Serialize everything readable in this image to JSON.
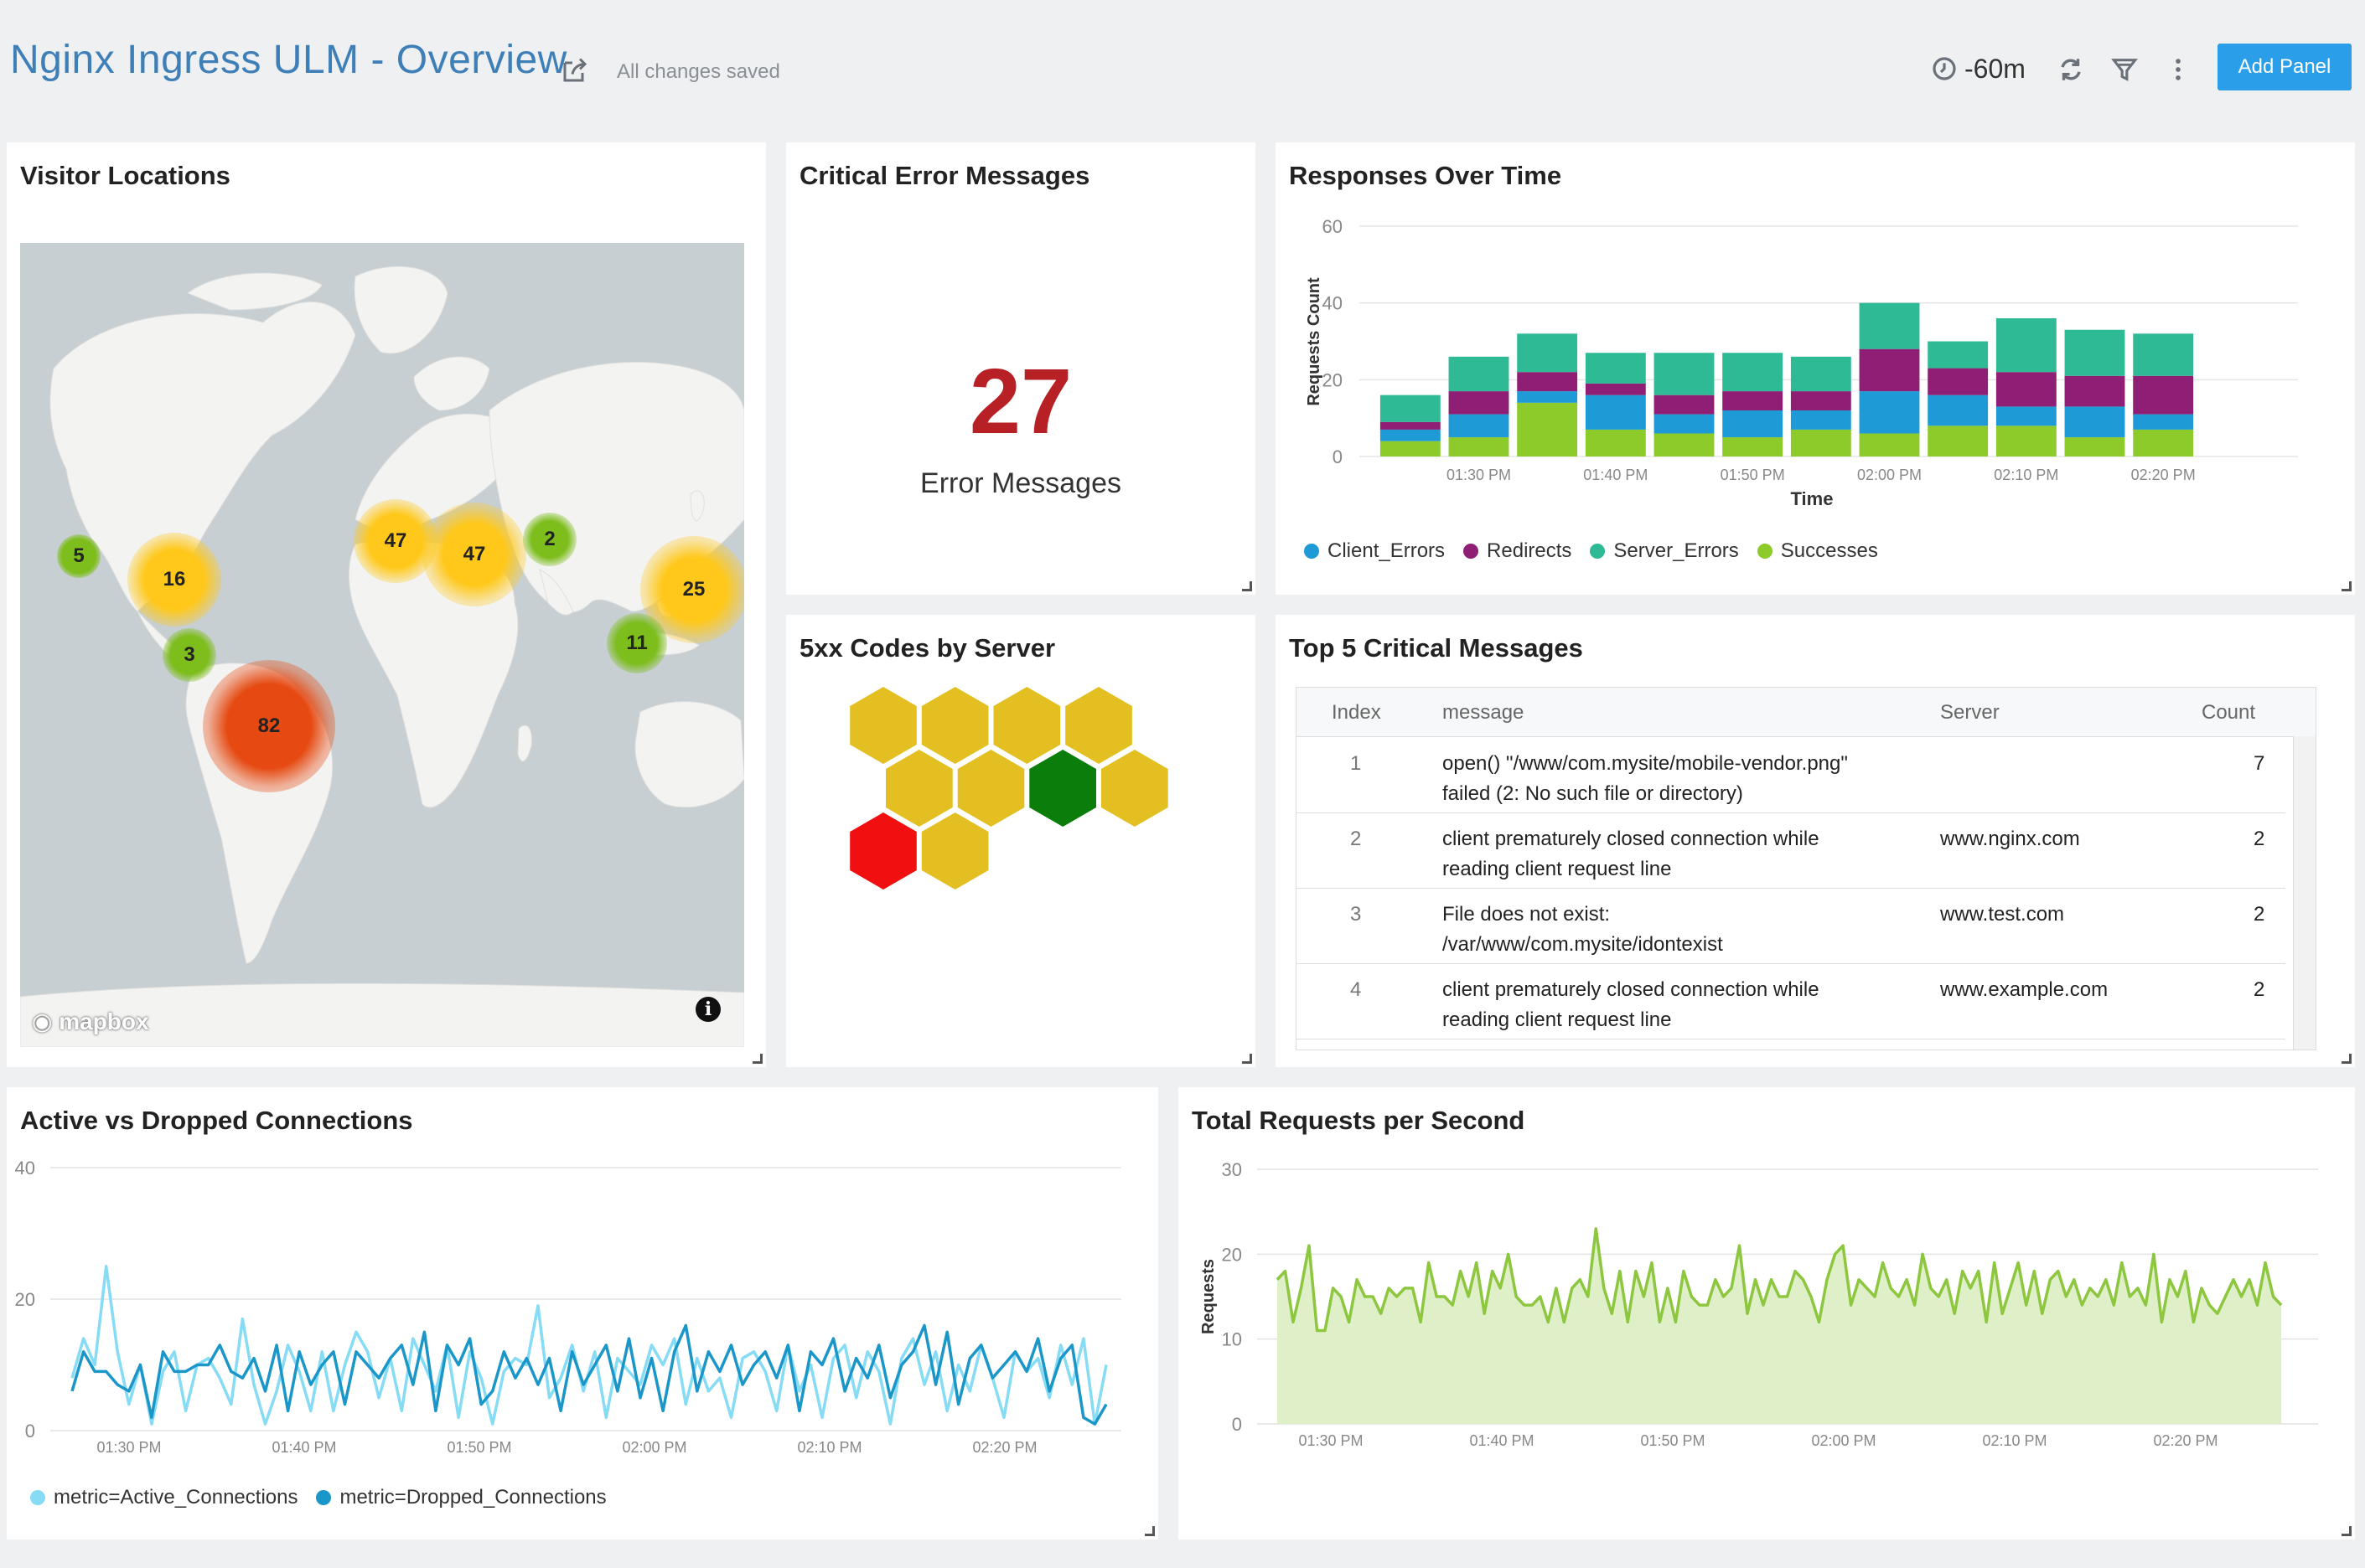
{
  "header": {
    "title": "Nginx Ingress ULM - Overview",
    "saved_status": "All changes saved",
    "time_range": "-60m",
    "add_panel_label": "Add Panel"
  },
  "panels": {
    "visitor_locations": {
      "title": "Visitor Locations",
      "clusters": [
        {
          "count": "5",
          "level": "green"
        },
        {
          "count": "16",
          "level": "yellow"
        },
        {
          "count": "3",
          "level": "green"
        },
        {
          "count": "82",
          "level": "red"
        },
        {
          "count": "47",
          "level": "yellow"
        },
        {
          "count": "47",
          "level": "yellow"
        },
        {
          "count": "2",
          "level": "green"
        },
        {
          "count": "25",
          "level": "yellow"
        },
        {
          "count": "11",
          "level": "green"
        }
      ],
      "attribution": "mapbox"
    },
    "critical_errors": {
      "title": "Critical Error Messages",
      "value": "27",
      "label": "Error Messages"
    },
    "responses_over_time": {
      "title": "Responses Over Time"
    },
    "codes_by_server": {
      "title": "5xx Codes by Server",
      "cells": [
        "yellow",
        "yellow",
        "yellow",
        "yellow",
        "yellow",
        "yellow",
        "green",
        "yellow",
        "red",
        "yellow"
      ]
    },
    "top_messages": {
      "title": "Top 5 Critical Messages",
      "columns": [
        "Index",
        "message",
        "Server",
        "Count"
      ],
      "rows": [
        {
          "index": "1",
          "message_line1": "open() \"/www/com.mysite/mobile-vendor.png\"",
          "message_line2": "failed (2: No such file or directory)",
          "server": "",
          "count": "7"
        },
        {
          "index": "2",
          "message_line1": "client prematurely closed connection while",
          "message_line2": "reading client request line",
          "server": "www.nginx.com",
          "count": "2"
        },
        {
          "index": "3",
          "message_line1": "File does not exist:",
          "message_line2": "/var/www/com.mysite/idontexist",
          "server": "www.test.com",
          "count": "2"
        },
        {
          "index": "4",
          "message_line1": "client prematurely closed connection while",
          "message_line2": "reading client request line",
          "server": "www.example.com",
          "count": "2"
        }
      ]
    },
    "active_dropped": {
      "title": "Active vs Dropped Connections"
    },
    "total_requests": {
      "title": "Total Requests per Second"
    }
  },
  "colors": {
    "client_errors": "#1e9bd7",
    "redirects": "#8e1f74",
    "server_errors": "#2dba94",
    "successes": "#8ccb2a",
    "active": "#86dbf5",
    "dropped": "#1a96c8",
    "requests_line": "#8dc63f",
    "requests_fill": "#dff0c8",
    "hex_yellow": "#e3bf21",
    "hex_green": "#0b7d0b",
    "hex_red": "#f01010"
  },
  "chart_data": [
    {
      "type": "bar",
      "stacked": true,
      "title": "Responses Over Time",
      "xlabel": "Time",
      "ylabel": "Requests Count",
      "ylim": [
        0,
        60
      ],
      "yticks": [
        0,
        20,
        40,
        60
      ],
      "xticks": [
        "01:30 PM",
        "01:40 PM",
        "01:50 PM",
        "02:00 PM",
        "02:10 PM",
        "02:20 PM"
      ],
      "categories": [
        "01:27 PM",
        "01:32 PM",
        "01:37 PM",
        "01:42 PM",
        "01:47 PM",
        "01:52 PM",
        "01:57 PM",
        "02:02 PM",
        "02:07 PM",
        "02:12 PM",
        "02:17 PM",
        "02:22 PM"
      ],
      "series": [
        {
          "name": "Successes",
          "values": [
            4,
            5,
            14,
            7,
            6,
            5,
            7,
            6,
            8,
            8,
            5,
            7
          ]
        },
        {
          "name": "Client_Errors",
          "values": [
            3,
            6,
            3,
            9,
            5,
            7,
            5,
            11,
            8,
            5,
            8,
            4
          ]
        },
        {
          "name": "Redirects",
          "values": [
            2,
            6,
            5,
            3,
            5,
            5,
            5,
            11,
            7,
            9,
            8,
            10
          ]
        },
        {
          "name": "Server_Errors",
          "values": [
            7,
            9,
            10,
            8,
            11,
            10,
            9,
            12,
            7,
            14,
            12,
            11
          ]
        }
      ],
      "legend_position": "bottom"
    },
    {
      "type": "line",
      "title": "Active vs Dropped Connections",
      "ylim": [
        0,
        40
      ],
      "yticks": [
        0,
        20,
        40
      ],
      "xticks": [
        "01:30 PM",
        "01:40 PM",
        "01:50 PM",
        "02:00 PM",
        "02:10 PM",
        "02:20 PM"
      ],
      "series": [
        {
          "name": "metric=Active_Connections",
          "values": [
            8,
            14,
            10,
            25,
            12,
            4,
            10,
            1,
            9,
            12,
            3,
            10,
            11,
            8,
            4,
            17,
            7,
            1,
            6,
            13,
            9,
            3,
            12,
            3,
            10,
            15,
            12,
            5,
            11,
            3,
            14,
            10,
            6,
            13,
            2,
            12,
            8,
            1,
            9,
            11,
            10,
            19,
            5,
            8,
            13,
            6,
            12,
            2,
            11,
            9,
            7,
            13,
            10,
            14,
            4,
            11,
            6,
            8,
            2,
            11,
            12,
            9,
            3,
            13,
            6,
            10,
            2,
            11,
            13,
            5,
            12,
            9,
            1,
            11,
            14,
            7,
            12,
            3,
            10,
            6,
            13,
            8,
            2,
            12,
            9,
            11,
            5,
            13,
            7,
            14,
            1,
            10
          ]
        },
        {
          "name": "metric=Dropped_Connections",
          "values": [
            6,
            12,
            9,
            9,
            7,
            6,
            10,
            2,
            12,
            9,
            9,
            10,
            10,
            13,
            9,
            8,
            11,
            6,
            13,
            3,
            12,
            7,
            10,
            12,
            4,
            12,
            10,
            8,
            11,
            13,
            7,
            15,
            3,
            13,
            10,
            14,
            4,
            6,
            12,
            8,
            11,
            7,
            11,
            3,
            12,
            7,
            10,
            13,
            6,
            14,
            5,
            11,
            3,
            12,
            16,
            6,
            12,
            9,
            13,
            7,
            10,
            12,
            8,
            13,
            3,
            12,
            10,
            14,
            6,
            11,
            8,
            13,
            5,
            10,
            12,
            16,
            7,
            15,
            4,
            11,
            13,
            8,
            10,
            12,
            9,
            14,
            6,
            11,
            13,
            2,
            1,
            4
          ]
        }
      ],
      "legend_position": "bottom-left"
    },
    {
      "type": "area",
      "title": "Total Requests per Second",
      "ylabel": "Requests",
      "ylim": [
        0,
        30
      ],
      "yticks": [
        0,
        10,
        20,
        30
      ],
      "xticks": [
        "01:30 PM",
        "01:40 PM",
        "01:50 PM",
        "02:00 PM",
        "02:10 PM",
        "02:20 PM"
      ],
      "series": [
        {
          "name": "Requests",
          "values": [
            17,
            18,
            12,
            16,
            21,
            11,
            11,
            16,
            15,
            12,
            17,
            15,
            15,
            13,
            16,
            15,
            16,
            16,
            12,
            19,
            15,
            15,
            14,
            18,
            15,
            19,
            13,
            18,
            16,
            20,
            15,
            14,
            14,
            15,
            12,
            16,
            12,
            16,
            17,
            15,
            23,
            16,
            13,
            18,
            12,
            18,
            15,
            19,
            12,
            16,
            12,
            18,
            15,
            14,
            14,
            17,
            15,
            16,
            21,
            13,
            17,
            14,
            17,
            15,
            15,
            18,
            17,
            15,
            12,
            17,
            20,
            21,
            14,
            17,
            16,
            15,
            19,
            16,
            15,
            17,
            14,
            20,
            16,
            15,
            17,
            13,
            18,
            16,
            18,
            12,
            19,
            13,
            16,
            19,
            14,
            18,
            13,
            17,
            18,
            15,
            17,
            14,
            16,
            15,
            17,
            14,
            19,
            15,
            16,
            14,
            20,
            12,
            17,
            15,
            18,
            12,
            16,
            14,
            13,
            15,
            17,
            15,
            17,
            14,
            19,
            15,
            14
          ]
        }
      ]
    }
  ]
}
